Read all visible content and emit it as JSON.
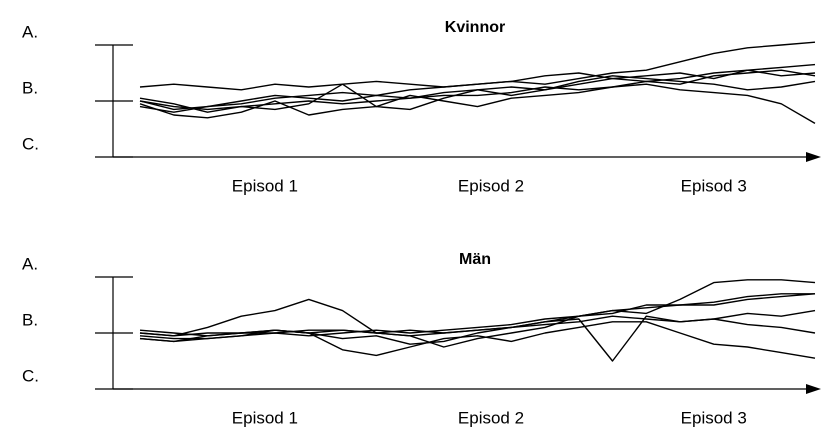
{
  "chart_data": [
    {
      "type": "line",
      "title": "Kvinnor",
      "color": "#000000",
      "x": [
        0,
        5,
        10,
        15,
        20,
        25,
        30,
        35,
        40,
        45,
        50,
        55,
        60,
        65,
        70,
        75,
        80,
        85,
        90,
        95,
        100
      ],
      "xlim": [
        0,
        100
      ],
      "xticks": [
        {
          "value": 18.5,
          "label": "Episod 1"
        },
        {
          "value": 52,
          "label": "Episod 2"
        },
        {
          "value": 85,
          "label": "Episod 3"
        }
      ],
      "ylim": [
        0,
        2
      ],
      "yticks": [
        {
          "value": 2,
          "label": "A."
        },
        {
          "value": 1,
          "label": "B."
        },
        {
          "value": 0,
          "label": "C."
        }
      ],
      "series": [
        {
          "values": [
            1.0,
            0.85,
            0.9,
            0.95,
            1.05,
            1.1,
            1.15,
            1.1,
            1.2,
            1.25,
            1.3,
            1.35,
            1.3,
            1.4,
            1.5,
            1.55,
            1.7,
            1.85,
            1.95,
            2.0,
            2.05
          ]
        },
        {
          "values": [
            1.25,
            1.3,
            1.25,
            1.2,
            1.3,
            1.25,
            1.3,
            1.35,
            1.3,
            1.25,
            1.3,
            1.35,
            1.45,
            1.5,
            1.4,
            1.35,
            1.4,
            1.5,
            1.55,
            1.6,
            1.65
          ]
        },
        {
          "values": [
            0.95,
            0.75,
            0.7,
            0.8,
            1.0,
            0.75,
            0.85,
            0.9,
            1.1,
            1.0,
            0.9,
            1.05,
            1.1,
            1.15,
            1.25,
            1.3,
            1.2,
            1.15,
            1.1,
            0.95,
            0.6
          ]
        },
        {
          "values": [
            1.05,
            0.95,
            0.8,
            0.9,
            0.85,
            0.95,
            1.3,
            0.9,
            0.85,
            1.05,
            1.2,
            1.1,
            1.2,
            1.3,
            1.4,
            1.45,
            1.5,
            1.4,
            1.55,
            1.45,
            1.5
          ]
        },
        {
          "values": [
            0.9,
            0.8,
            0.9,
            1.0,
            1.1,
            1.05,
            1.0,
            1.1,
            1.05,
            1.15,
            1.2,
            1.25,
            1.2,
            1.35,
            1.45,
            1.4,
            1.35,
            1.3,
            1.2,
            1.25,
            1.35
          ]
        },
        {
          "values": [
            1.0,
            0.9,
            0.85,
            0.9,
            0.95,
            1.0,
            0.95,
            1.0,
            1.05,
            1.1,
            1.1,
            1.15,
            1.25,
            1.2,
            1.25,
            1.35,
            1.3,
            1.45,
            1.5,
            1.55,
            1.45
          ]
        }
      ]
    },
    {
      "type": "line",
      "title": "Män",
      "color": "#000000",
      "x": [
        0,
        5,
        10,
        15,
        20,
        25,
        30,
        35,
        40,
        45,
        50,
        55,
        60,
        65,
        70,
        75,
        80,
        85,
        90,
        95,
        100
      ],
      "xlim": [
        0,
        100
      ],
      "xticks": [
        {
          "value": 18.5,
          "label": "Episod 1"
        },
        {
          "value": 52,
          "label": "Episod 2"
        },
        {
          "value": 85,
          "label": "Episod 3"
        }
      ],
      "ylim": [
        0,
        2
      ],
      "yticks": [
        {
          "value": 2,
          "label": "A."
        },
        {
          "value": 1,
          "label": "B."
        },
        {
          "value": 0,
          "label": "C."
        }
      ],
      "series": [
        {
          "values": [
            1.0,
            0.95,
            1.1,
            1.3,
            1.4,
            1.6,
            1.4,
            1.0,
            0.95,
            1.0,
            1.05,
            1.1,
            1.2,
            1.3,
            1.35,
            1.5,
            1.5,
            1.55,
            1.65,
            1.7,
            1.7
          ]
        },
        {
          "values": [
            0.9,
            0.85,
            0.95,
            1.0,
            1.05,
            1.0,
            0.7,
            0.6,
            0.75,
            0.9,
            0.95,
            0.85,
            1.0,
            1.1,
            1.2,
            1.2,
            1.0,
            0.8,
            0.75,
            0.65,
            0.55
          ]
        },
        {
          "values": [
            1.0,
            0.95,
            1.0,
            1.0,
            1.0,
            1.05,
            1.05,
            1.0,
            0.95,
            0.75,
            0.9,
            1.0,
            1.1,
            1.3,
            1.4,
            1.35,
            1.6,
            1.9,
            1.95,
            1.95,
            1.9
          ]
        },
        {
          "values": [
            0.95,
            0.9,
            0.9,
            0.95,
            1.0,
            0.95,
            1.0,
            1.05,
            1.0,
            1.05,
            1.1,
            1.15,
            1.25,
            1.3,
            1.4,
            1.45,
            1.5,
            1.5,
            1.6,
            1.65,
            1.7
          ]
        },
        {
          "values": [
            0.9,
            0.85,
            0.9,
            0.95,
            1.05,
            1.0,
            0.9,
            0.95,
            0.8,
            0.85,
            1.0,
            1.1,
            1.2,
            1.25,
            0.5,
            1.3,
            1.2,
            1.25,
            1.15,
            1.1,
            1.0
          ]
        },
        {
          "values": [
            1.05,
            1.0,
            0.95,
            1.0,
            1.05,
            1.0,
            1.05,
            1.0,
            1.05,
            1.0,
            1.05,
            1.1,
            1.15,
            1.2,
            1.3,
            1.25,
            1.2,
            1.25,
            1.35,
            1.3,
            1.4
          ]
        }
      ]
    }
  ]
}
